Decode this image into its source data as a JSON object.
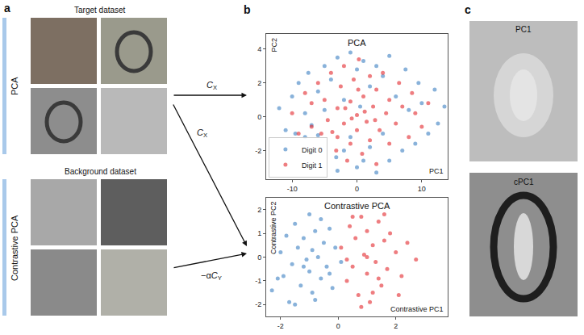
{
  "chart_data": [
    {
      "type": "scatter",
      "title": "PCA",
      "x_label": "PC1",
      "y_label": "PC2",
      "xlim": [
        -14,
        14
      ],
      "ylim": [
        -3.7,
        4.9
      ],
      "xticks": [
        -10,
        0,
        10
      ],
      "yticks": [
        -2,
        0,
        2,
        4
      ],
      "grid": false,
      "legend": "lower left",
      "series": [
        {
          "name": "Digit 0",
          "color": "#3a7fc1",
          "marker": "circle",
          "x": [
            -12,
            -11,
            -10,
            -9.5,
            -9,
            -8,
            -8,
            -7.5,
            -7,
            -6,
            -6,
            -5,
            -5,
            -3.2,
            -4,
            -3,
            -3,
            -2,
            -2,
            -1,
            -1,
            0,
            0,
            0.5,
            1,
            1,
            2,
            2,
            3,
            3,
            4,
            4,
            5,
            5,
            6,
            7,
            7.5,
            8,
            9,
            9.5,
            10,
            11,
            12,
            12.5,
            13.5
          ],
          "y": [
            0.5,
            -0.8,
            1.2,
            -1.0,
            2.0,
            0.2,
            -1.2,
            2.6,
            -0.5,
            1.5,
            -1.1,
            3.0,
            0.4,
            -2.4,
            2.2,
            3.5,
            -3.2,
            1.0,
            -2.0,
            3.8,
            -1.2,
            2.8,
            -3.0,
            0.6,
            3.3,
            -2.6,
            1.8,
            -1.8,
            3.0,
            -3.3,
            2.4,
            -1.0,
            3.6,
            -2.6,
            1.2,
            -2.0,
            2.8,
            0.4,
            -1.6,
            2.0,
            0.8,
            -1.0,
            1.6,
            -0.4,
            0.6
          ]
        },
        {
          "name": "Digit 1",
          "color": "#e3262c",
          "marker": "circle",
          "x": [
            -10,
            -9,
            -8,
            -7,
            -7,
            -6,
            -5.5,
            -5,
            -4.5,
            -4,
            -3.2,
            -3,
            -3,
            -2.5,
            -2,
            -2,
            -1.5,
            -1,
            -1,
            -0.5,
            0,
            0,
            0.3,
            0.8,
            1,
            1.5,
            2,
            2,
            2.5,
            3,
            3,
            3.5,
            4,
            4.5,
            5,
            5,
            6,
            6.5,
            7,
            8,
            8.5,
            9,
            10,
            11,
            -1.8,
            1.2,
            -0.8,
            0.2,
            2.8,
            -3.8
          ],
          "y": [
            0.2,
            -1.0,
            1.4,
            -0.6,
            0.8,
            2.0,
            -1.0,
            1.0,
            -0.2,
            2.6,
            -2.0,
            0.5,
            -1.2,
            1.8,
            -0.4,
            3.0,
            -2.6,
            0.9,
            -1.6,
            2.2,
            0.1,
            -0.8,
            3.4,
            -2.2,
            1.2,
            -0.3,
            2.4,
            -1.4,
            0.6,
            -2.8,
            1.6,
            -0.8,
            2.6,
            0.2,
            -1.6,
            1.0,
            -0.4,
            2.0,
            0.6,
            -1.2,
            1.4,
            0.2,
            -0.6,
            0.8,
            0.5,
            0.3,
            -0.1,
            1.6,
            -0.2,
            -0.9
          ]
        }
      ]
    },
    {
      "type": "scatter",
      "title": "Contrastive PCA",
      "x_label": "Contrastive PC1",
      "y_label": "Contrastive PC2",
      "xlim": [
        -2.5,
        3.8
      ],
      "ylim": [
        -2.5,
        2.5
      ],
      "xticks": [
        -2,
        0,
        2
      ],
      "yticks": [
        -2,
        -1,
        0,
        1,
        2
      ],
      "grid": false,
      "series": [
        {
          "name": "Digit 0",
          "color": "#3a7fc1",
          "marker": "circle",
          "x": [
            -2.3,
            -2.0,
            -1.9,
            -1.8,
            -1.6,
            -1.5,
            -1.4,
            -1.3,
            -1.2,
            -1.1,
            -1.0,
            -1.0,
            -0.9,
            -0.8,
            -0.8,
            -0.7,
            -0.6,
            -0.5,
            -0.4,
            -0.3,
            -0.2,
            -0.1,
            0.1,
            -1.7,
            -1.2,
            -0.6,
            -1.5,
            -0.9,
            -2.1,
            -0.3
          ],
          "y": [
            -1.4,
            0.2,
            -0.8,
            0.9,
            -0.3,
            1.4,
            0.4,
            -1.2,
            0.8,
            -0.1,
            1.8,
            -0.6,
            0.3,
            -1.8,
            1.1,
            0.0,
            -0.9,
            0.6,
            -0.4,
            1.2,
            -1.3,
            0.4,
            -0.2,
            -1.9,
            -0.4,
            1.6,
            -2.0,
            -1.5,
            -0.9,
            -0.7
          ]
        },
        {
          "name": "Digit 1",
          "color": "#e3262c",
          "marker": "circle",
          "x": [
            0.1,
            0.3,
            0.4,
            0.5,
            0.6,
            0.7,
            0.8,
            0.9,
            1.0,
            1.0,
            1.1,
            1.2,
            1.3,
            1.4,
            1.5,
            1.6,
            1.7,
            1.8,
            2.0,
            2.2,
            2.4,
            2.7,
            0.8,
            1.2,
            0.5,
            1.6,
            1.0,
            2.1,
            0.3,
            1.4
          ],
          "y": [
            0.4,
            -1.0,
            1.3,
            -0.4,
            0.8,
            -1.6,
            1.7,
            0.1,
            -0.7,
            1.1,
            -1.9,
            0.5,
            -0.2,
            1.5,
            -1.2,
            0.7,
            -0.5,
            1.0,
            0.2,
            -0.8,
            0.6,
            -0.1,
            -2.1,
            -1.5,
            1.7,
            1.8,
            0.0,
            -1.6,
            -0.1,
            -0.9
          ]
        }
      ]
    }
  ],
  "figure": {
    "a": {
      "label": "a",
      "rows": [
        {
          "method": "PCA",
          "caption": "Target dataset"
        },
        {
          "method": "Contrastive PCA",
          "caption": "Background dataset"
        }
      ],
      "arrows": [
        {
          "text": "C",
          "subscript": "X"
        },
        {
          "text": "C",
          "subscript": "X"
        },
        {
          "prefix": "−α",
          "text": "C",
          "subscript": "Y"
        }
      ]
    },
    "b": {
      "label": "b"
    },
    "c": {
      "label": "c",
      "images": [
        "PC1",
        "cPC1"
      ]
    }
  }
}
